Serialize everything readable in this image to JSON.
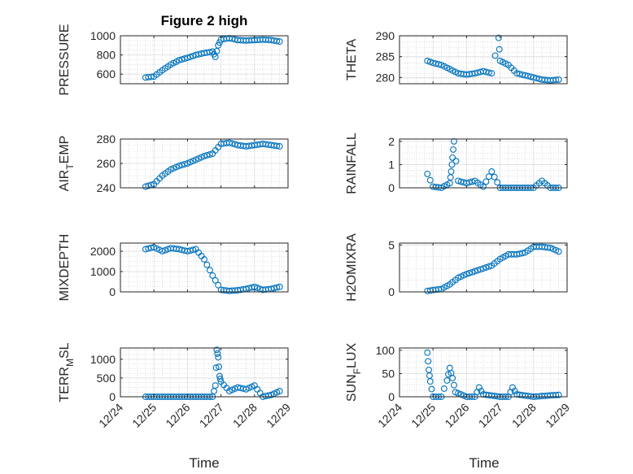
{
  "figure": {
    "title": "Figure 2 high",
    "xlabel": "Time",
    "marker_color": "#0072BD",
    "grid": true,
    "xlim": [
      "12/24",
      "12/29"
    ],
    "xticks": [
      "12/24",
      "12/25",
      "12/26",
      "12/27",
      "12/28",
      "12/29"
    ]
  },
  "chart_data": [
    {
      "type": "scatter",
      "ylabel_main": "PRESSURE",
      "ylabel_sub": "",
      "ylabel_tail": "",
      "ylim": [
        500,
        1000
      ],
      "yticks": [
        "600",
        "800",
        "1000"
      ],
      "ytick_values": [
        600,
        800,
        1000
      ],
      "x": [
        "12/24 18:00",
        "12/25 00:00",
        "12/25 06:00",
        "12/25 12:00",
        "12/25 18:00",
        "12/26 00:00",
        "12/26 06:00",
        "12/26 12:00",
        "12/26 18:00",
        "12/26 20:00",
        "12/26 22:00",
        "12/27 00:00",
        "12/27 06:00",
        "12/27 12:00",
        "12/27 18:00",
        "12/28 00:00",
        "12/28 06:00",
        "12/28 12:00",
        "12/28 18:00"
      ],
      "y": [
        565,
        575,
        640,
        700,
        745,
        770,
        800,
        820,
        835,
        780,
        900,
        960,
        975,
        955,
        950,
        955,
        960,
        955,
        940
      ]
    },
    {
      "type": "scatter",
      "ylabel_main": "THETA",
      "ylabel_sub": "",
      "ylabel_tail": "",
      "ylim": [
        278.5,
        290
      ],
      "yticks": [
        "280",
        "285",
        "290"
      ],
      "ytick_values": [
        280,
        285,
        290
      ],
      "x": [
        "12/24 20:00",
        "12/25 00:00",
        "12/25 06:00",
        "12/25 12:00",
        "12/25 18:00",
        "12/26 00:00",
        "12/26 06:00",
        "12/26 12:00",
        "12/26 18:00",
        "12/26 23:00",
        "12/27 00:00",
        "12/27 06:00",
        "12/27 12:00",
        "12/27 18:00",
        "12/28 00:00",
        "12/28 06:00",
        "12/28 12:00",
        "12/28 18:00"
      ],
      "y": [
        284,
        283.5,
        283,
        282,
        281,
        280.7,
        281,
        281.5,
        281,
        289.5,
        284,
        283,
        281,
        280.5,
        280,
        279.5,
        279.3,
        279.5
      ]
    },
    {
      "type": "scatter",
      "ylabel_main": "AIR",
      "ylabel_sub": "T",
      "ylabel_tail": "EMP",
      "ylim": [
        240,
        280
      ],
      "yticks": [
        "240",
        "260",
        "280"
      ],
      "ytick_values": [
        240,
        260,
        280
      ],
      "x": [
        "12/24 18:00",
        "12/25 00:00",
        "12/25 06:00",
        "12/25 12:00",
        "12/25 18:00",
        "12/26 00:00",
        "12/26 06:00",
        "12/26 12:00",
        "12/26 18:00",
        "12/27 00:00",
        "12/27 06:00",
        "12/27 12:00",
        "12/27 18:00",
        "12/28 00:00",
        "12/28 06:00",
        "12/28 12:00",
        "12/28 18:00"
      ],
      "y": [
        241,
        243,
        250,
        255,
        258,
        260,
        263,
        266,
        268,
        276,
        277,
        275,
        274,
        275,
        276,
        275,
        274
      ]
    },
    {
      "type": "scatter",
      "ylabel_main": "RAINFALL",
      "ylabel_sub": "",
      "ylabel_tail": "",
      "ylim": [
        0,
        2.1
      ],
      "yticks": [
        "0",
        "1",
        "2"
      ],
      "ytick_values": [
        0,
        1,
        2
      ],
      "x": [
        "12/24 20:00",
        "12/25 00:00",
        "12/25 06:00",
        "12/25 12:00",
        "12/25 13:00",
        "12/25 14:00",
        "12/25 15:00",
        "12/25 18:00",
        "12/26 00:00",
        "12/26 06:00",
        "12/26 12:00",
        "12/26 18:00",
        "12/27 00:00",
        "12/27 12:00",
        "12/28 00:00",
        "12/28 06:00",
        "12/28 12:00",
        "12/28 18:00"
      ],
      "y": [
        0.6,
        0.05,
        0,
        0.2,
        0.7,
        1.3,
        2.0,
        0.3,
        0.2,
        0.3,
        0.05,
        0.7,
        0,
        0,
        0,
        0.3,
        0,
        0
      ]
    },
    {
      "type": "scatter",
      "ylabel_main": "MIXDEPTH",
      "ylabel_sub": "",
      "ylabel_tail": "",
      "ylim": [
        0,
        2400
      ],
      "yticks": [
        "0",
        "1000",
        "2000"
      ],
      "ytick_values": [
        0,
        1000,
        2000
      ],
      "x": [
        "12/24 18:00",
        "12/25 00:00",
        "12/25 06:00",
        "12/25 12:00",
        "12/25 18:00",
        "12/26 00:00",
        "12/26 06:00",
        "12/26 12:00",
        "12/26 18:00",
        "12/27 00:00",
        "12/27 06:00",
        "12/27 12:00",
        "12/27 18:00",
        "12/28 00:00",
        "12/28 06:00",
        "12/28 12:00",
        "12/28 18:00"
      ],
      "y": [
        2100,
        2200,
        2000,
        2150,
        2100,
        2000,
        2100,
        1600,
        800,
        100,
        50,
        80,
        150,
        250,
        100,
        150,
        250
      ]
    },
    {
      "type": "scatter",
      "ylabel_main": "H2OMIXRA",
      "ylabel_sub": "",
      "ylabel_tail": "",
      "ylim": [
        0,
        5.2
      ],
      "yticks": [
        "0",
        "5"
      ],
      "ytick_values": [
        0,
        5
      ],
      "x": [
        "12/24 20:00",
        "12/25 00:00",
        "12/25 06:00",
        "12/25 12:00",
        "12/25 18:00",
        "12/26 00:00",
        "12/26 06:00",
        "12/26 12:00",
        "12/26 18:00",
        "12/27 00:00",
        "12/27 06:00",
        "12/27 12:00",
        "12/27 18:00",
        "12/28 00:00",
        "12/28 06:00",
        "12/28 12:00",
        "12/28 18:00"
      ],
      "y": [
        0.1,
        0.2,
        0.3,
        0.8,
        1.5,
        1.9,
        2.2,
        2.5,
        2.8,
        3.5,
        4.0,
        4.0,
        4.2,
        4.8,
        4.8,
        4.7,
        4.3
      ]
    },
    {
      "type": "scatter",
      "ylabel_main": "TERR",
      "ylabel_sub": "M",
      "ylabel_tail": "SL",
      "ylim": [
        0,
        1300
      ],
      "yticks": [
        "0",
        "500",
        "1000"
      ],
      "ytick_values": [
        0,
        500,
        1000
      ],
      "x": [
        "12/24 18:00",
        "12/25 00:00",
        "12/25 12:00",
        "12/26 00:00",
        "12/26 12:00",
        "12/26 18:00",
        "12/26 20:00",
        "12/26 21:00",
        "12/26 22:00",
        "12/26 23:00",
        "12/27 00:00",
        "12/27 06:00",
        "12/27 12:00",
        "12/27 18:00",
        "12/28 00:00",
        "12/28 06:00",
        "12/28 12:00",
        "12/28 18:00"
      ],
      "y": [
        0,
        0,
        0,
        0,
        0,
        0,
        300,
        1250,
        1050,
        550,
        400,
        150,
        250,
        200,
        300,
        0,
        50,
        150
      ]
    },
    {
      "type": "scatter",
      "ylabel_main": "SUN",
      "ylabel_sub": "F",
      "ylabel_tail": "LUX",
      "ylim": [
        0,
        105
      ],
      "yticks": [
        "0",
        "50",
        "100"
      ],
      "ytick_values": [
        0,
        50,
        100
      ],
      "x": [
        "12/24 20:00",
        "12/24 21:00",
        "12/24 22:00",
        "12/25 00:00",
        "12/25 06:00",
        "12/25 10:00",
        "12/25 12:00",
        "12/25 14:00",
        "12/25 16:00",
        "12/26 00:00",
        "12/26 06:00",
        "12/26 09:00",
        "12/26 12:00",
        "12/27 00:00",
        "12/27 06:00",
        "12/27 09:00",
        "12/27 12:00",
        "12/28 00:00",
        "12/28 12:00",
        "12/28 18:00"
      ],
      "y": [
        95,
        58,
        33,
        0,
        0,
        35,
        62,
        40,
        10,
        0,
        0,
        20,
        5,
        0,
        0,
        20,
        5,
        0,
        3,
        4
      ]
    }
  ]
}
